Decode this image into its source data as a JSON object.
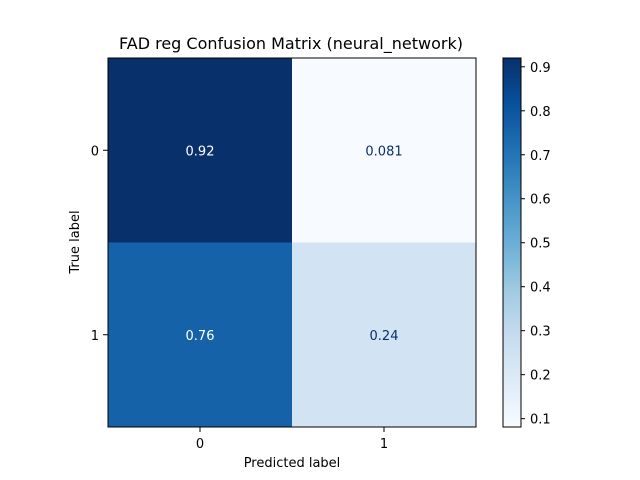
{
  "chart_data": {
    "type": "heatmap",
    "title": "FAD reg Confusion Matrix (neural_network)",
    "xlabel": "Predicted label",
    "ylabel": "True label",
    "x_categories": [
      "0",
      "1"
    ],
    "y_categories": [
      "0",
      "1"
    ],
    "values": [
      [
        0.92,
        0.081
      ],
      [
        0.76,
        0.24
      ]
    ],
    "cell_labels": [
      [
        "0.92",
        "0.081"
      ],
      [
        "0.76",
        "0.24"
      ]
    ],
    "colormap": "Blues",
    "colorbar": {
      "min": 0.081,
      "max": 0.92,
      "ticks": [
        0.1,
        0.2,
        0.3,
        0.4,
        0.5,
        0.6,
        0.7,
        0.8,
        0.9
      ],
      "tick_labels": [
        "0.1",
        "0.2",
        "0.3",
        "0.4",
        "0.5",
        "0.6",
        "0.7",
        "0.8",
        "0.9"
      ]
    },
    "colors": {
      "text_light": "#ffffff",
      "text_dark": "#08306b"
    }
  }
}
